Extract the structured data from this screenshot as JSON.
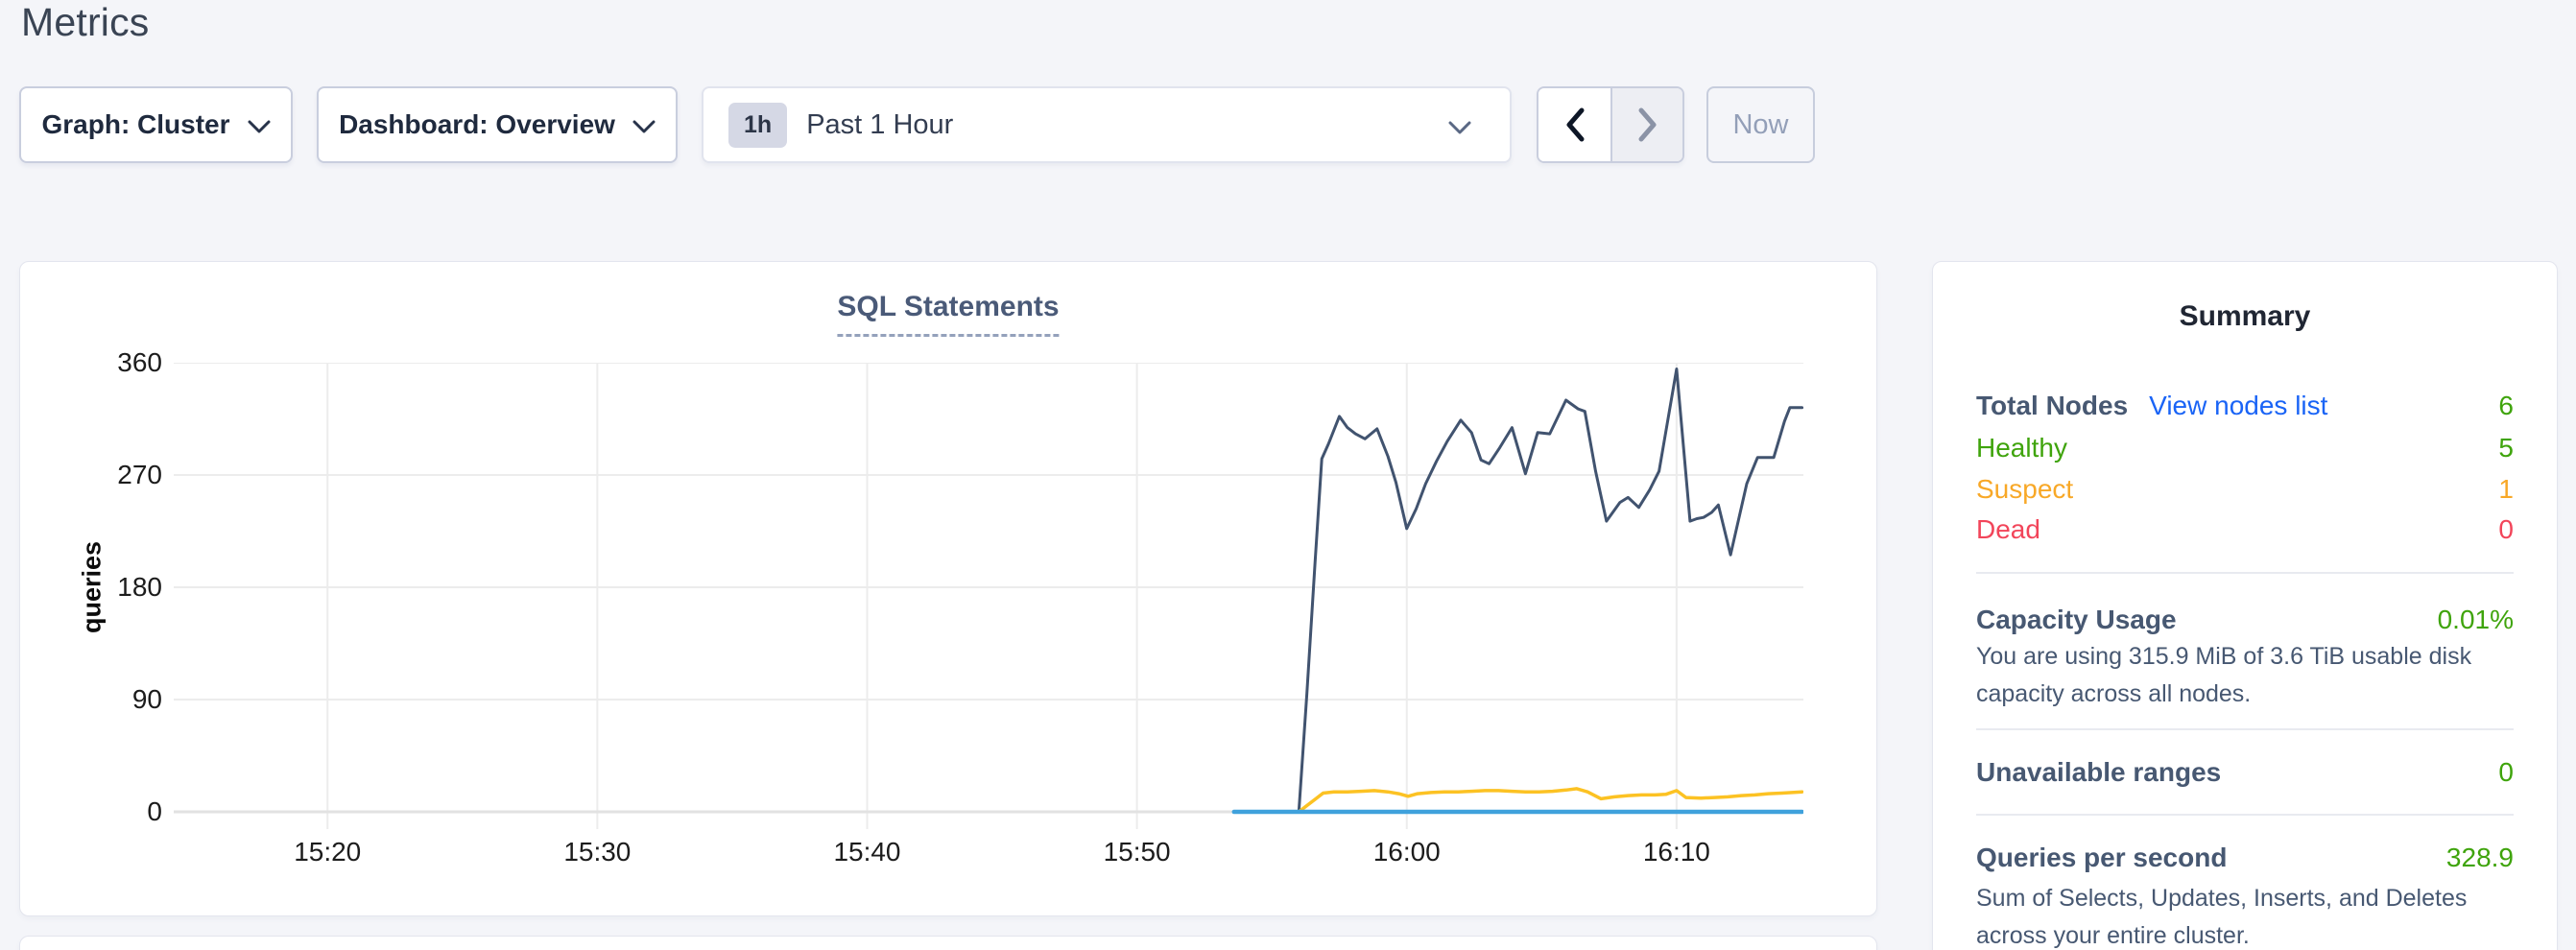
{
  "page": {
    "title": "Metrics",
    "background": "#f4f5f9"
  },
  "toolbar": {
    "graph_dropdown": {
      "label": "Graph: Cluster"
    },
    "dashboard_dropdown": {
      "label": "Dashboard: Overview"
    },
    "time_selector": {
      "badge": "1h",
      "label": "Past 1 Hour"
    },
    "now_button_label": "Now"
  },
  "chart_data": {
    "type": "line",
    "title": "SQL Statements",
    "ylabel": "queries",
    "ylim": [
      0,
      360
    ],
    "y_ticks": [
      0,
      90,
      180,
      270,
      360
    ],
    "x_domain_minutes_after_1500": [
      14.3,
      74.7
    ],
    "x_ticks": [
      {
        "t": 20,
        "label": "15:20"
      },
      {
        "t": 30,
        "label": "15:30"
      },
      {
        "t": 40,
        "label": "15:40"
      },
      {
        "t": 50,
        "label": "15:50"
      },
      {
        "t": 60,
        "label": "16:00"
      },
      {
        "t": 70,
        "label": "16:10"
      }
    ],
    "grid": true,
    "legend": "none",
    "series": [
      {
        "name": "queries-dark-series",
        "color": "#41536f",
        "width": 3,
        "points": [
          [
            56.0,
            0
          ],
          [
            56.3,
            95
          ],
          [
            56.6,
            200
          ],
          [
            56.85,
            283
          ],
          [
            57.1,
            295
          ],
          [
            57.5,
            317
          ],
          [
            57.8,
            308
          ],
          [
            58.1,
            303
          ],
          [
            58.45,
            299
          ],
          [
            58.9,
            307
          ],
          [
            59.3,
            285
          ],
          [
            59.6,
            264
          ],
          [
            60.0,
            227
          ],
          [
            60.35,
            243
          ],
          [
            60.7,
            263
          ],
          [
            61.1,
            281
          ],
          [
            61.5,
            297
          ],
          [
            62.0,
            314
          ],
          [
            62.4,
            304
          ],
          [
            62.75,
            282
          ],
          [
            63.05,
            279
          ],
          [
            63.45,
            292
          ],
          [
            63.9,
            308
          ],
          [
            64.4,
            271
          ],
          [
            64.85,
            304
          ],
          [
            65.3,
            303
          ],
          [
            65.9,
            330
          ],
          [
            66.35,
            323
          ],
          [
            66.6,
            321
          ],
          [
            67.0,
            273
          ],
          [
            67.4,
            233
          ],
          [
            67.9,
            248
          ],
          [
            68.2,
            252
          ],
          [
            68.6,
            244
          ],
          [
            69.0,
            258
          ],
          [
            69.35,
            273
          ],
          [
            70.0,
            355
          ],
          [
            70.5,
            233
          ],
          [
            70.75,
            235
          ],
          [
            71.0,
            236
          ],
          [
            71.3,
            240
          ],
          [
            71.55,
            246
          ],
          [
            72.0,
            206
          ],
          [
            72.6,
            263
          ],
          [
            73.0,
            284
          ],
          [
            73.6,
            284
          ],
          [
            74.0,
            313
          ],
          [
            74.2,
            324
          ],
          [
            74.65,
            324
          ]
        ]
      },
      {
        "name": "queries-yellow-series",
        "color": "#fcc223",
        "width": 3.5,
        "points": [
          [
            56.0,
            0
          ],
          [
            56.3,
            5
          ],
          [
            56.6,
            10
          ],
          [
            56.9,
            15
          ],
          [
            57.3,
            16
          ],
          [
            57.8,
            16
          ],
          [
            58.3,
            16.5
          ],
          [
            58.8,
            17
          ],
          [
            59.3,
            16
          ],
          [
            59.7,
            14.5
          ],
          [
            60.05,
            12.5
          ],
          [
            60.4,
            14.5
          ],
          [
            60.9,
            15.5
          ],
          [
            61.4,
            16
          ],
          [
            61.9,
            16
          ],
          [
            62.4,
            16.5
          ],
          [
            62.9,
            17
          ],
          [
            63.4,
            17
          ],
          [
            63.9,
            16.5
          ],
          [
            64.4,
            16
          ],
          [
            64.9,
            16
          ],
          [
            65.4,
            16.5
          ],
          [
            65.9,
            17.5
          ],
          [
            66.3,
            18.5
          ],
          [
            66.7,
            16
          ],
          [
            67.2,
            10.5
          ],
          [
            67.7,
            12
          ],
          [
            68.2,
            13
          ],
          [
            68.7,
            13.5
          ],
          [
            69.2,
            13.5
          ],
          [
            69.6,
            14
          ],
          [
            70.0,
            17
          ],
          [
            70.35,
            11.5
          ],
          [
            70.9,
            11
          ],
          [
            71.4,
            11.5
          ],
          [
            71.9,
            12
          ],
          [
            72.4,
            13
          ],
          [
            72.9,
            13.5
          ],
          [
            73.4,
            14.5
          ],
          [
            73.9,
            15
          ],
          [
            74.65,
            16
          ]
        ]
      },
      {
        "name": "queries-blue-series",
        "color": "#3fa1dc",
        "width": 4.5,
        "points": [
          [
            53.6,
            0
          ],
          [
            74.65,
            0
          ]
        ]
      }
    ]
  },
  "summary": {
    "title": "Summary",
    "nodes": {
      "total_label": "Total Nodes",
      "link_label": "View nodes list",
      "total_value": "6",
      "total_color": "#3fa40c",
      "rows": [
        {
          "label": "Healthy",
          "value": "5",
          "color": "#3fa40c"
        },
        {
          "label": "Suspect",
          "value": "1",
          "color": "#f8a827"
        },
        {
          "label": "Dead",
          "value": "0",
          "color": "#f2455a"
        }
      ]
    },
    "capacity": {
      "label": "Capacity Usage",
      "value": "0.01%",
      "value_color": "#3fa40c",
      "description": "You are using 315.9 MiB of 3.6 TiB usable disk capacity across all nodes."
    },
    "unavailable": {
      "label": "Unavailable ranges",
      "value": "0",
      "value_color": "#3fa40c"
    },
    "qps": {
      "label": "Queries per second",
      "value": "328.9",
      "value_color": "#3fa40c",
      "description": "Sum of Selects, Updates, Inserts, and Deletes across your entire cluster."
    }
  },
  "colors": {
    "accent_link": "#1a64f6",
    "label_slate": "#475872",
    "green": "#3fa40c",
    "orange": "#f8a827",
    "red": "#f2455a",
    "gridline": "#ececec",
    "axis_line": "#e2e2e2"
  }
}
